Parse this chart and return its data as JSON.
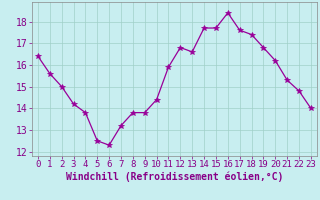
{
  "x": [
    0,
    1,
    2,
    3,
    4,
    5,
    6,
    7,
    8,
    9,
    10,
    11,
    12,
    13,
    14,
    15,
    16,
    17,
    18,
    19,
    20,
    21,
    22,
    23
  ],
  "y": [
    16.4,
    15.6,
    15.0,
    14.2,
    13.8,
    12.5,
    12.3,
    13.2,
    13.8,
    13.8,
    14.4,
    15.9,
    16.8,
    16.6,
    17.7,
    17.7,
    18.4,
    17.6,
    17.4,
    16.8,
    16.2,
    15.3,
    14.8,
    14.0
  ],
  "line_color": "#990099",
  "marker": "*",
  "marker_size": 4,
  "bg_color": "#c8eef0",
  "grid_color": "#a0d0c8",
  "xlabel": "Windchill (Refroidissement éolien,°C)",
  "xlabel_fontsize": 7,
  "tick_fontsize": 6.5,
  "ytick_fontsize": 7,
  "ylim": [
    11.8,
    18.9
  ],
  "xlim": [
    -0.5,
    23.5
  ],
  "yticks": [
    12,
    13,
    14,
    15,
    16,
    17,
    18
  ],
  "xticks": [
    0,
    1,
    2,
    3,
    4,
    5,
    6,
    7,
    8,
    9,
    10,
    11,
    12,
    13,
    14,
    15,
    16,
    17,
    18,
    19,
    20,
    21,
    22,
    23
  ]
}
